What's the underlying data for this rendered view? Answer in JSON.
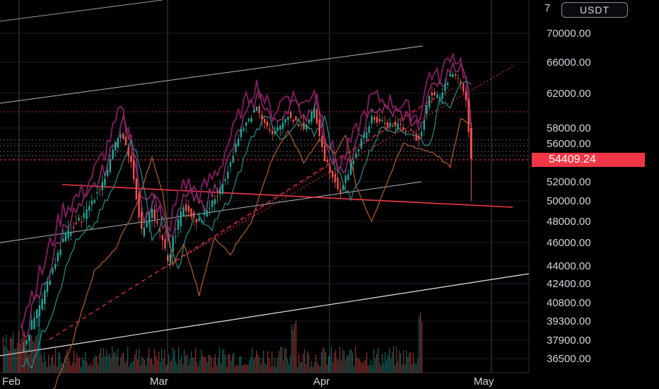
{
  "chart_data": {
    "type": "candlestick",
    "quote_currency": "USDT",
    "last_price": "54409.24",
    "y_ticks": [
      70000,
      66000,
      62000,
      58000,
      56000,
      52000,
      50000,
      48000,
      46000,
      44000,
      42400,
      40800,
      39300,
      37900,
      36500
    ],
    "y_tick_labels": [
      "70000.00",
      "66000.00",
      "62000.00",
      "58000.00",
      "56000.00",
      "52000.00",
      "50000.00",
      "48000.00",
      "46000.00",
      "44000.00",
      "42400.00",
      "40800.00",
      "39300.00",
      "37900.00",
      "36500.00"
    ],
    "x_tick_labels": [
      "Feb",
      "Mar",
      "Apr",
      "May"
    ],
    "close_path": [
      {
        "day": 0,
        "price": 37000
      },
      {
        "day": 4,
        "price": 41000
      },
      {
        "day": 8,
        "price": 46500
      },
      {
        "day": 12,
        "price": 48500
      },
      {
        "day": 16,
        "price": 52500
      },
      {
        "day": 19,
        "price": 57500
      },
      {
        "day": 21,
        "price": 54000
      },
      {
        "day": 23,
        "price": 47000
      },
      {
        "day": 25,
        "price": 49000
      },
      {
        "day": 28,
        "price": 44500
      },
      {
        "day": 31,
        "price": 49500
      },
      {
        "day": 34,
        "price": 48000
      },
      {
        "day": 38,
        "price": 51000
      },
      {
        "day": 42,
        "price": 57500
      },
      {
        "day": 45,
        "price": 60500
      },
      {
        "day": 48,
        "price": 57000
      },
      {
        "day": 51,
        "price": 59500
      },
      {
        "day": 54,
        "price": 58000
      },
      {
        "day": 56,
        "price": 60000
      },
      {
        "day": 58,
        "price": 54500
      },
      {
        "day": 61,
        "price": 51000
      },
      {
        "day": 64,
        "price": 55000
      },
      {
        "day": 67,
        "price": 59000
      },
      {
        "day": 70,
        "price": 58500
      },
      {
        "day": 73,
        "price": 58000
      },
      {
        "day": 76,
        "price": 56500
      },
      {
        "day": 78,
        "price": 62000
      },
      {
        "day": 80,
        "price": 61500
      },
      {
        "day": 82,
        "price": 64500
      },
      {
        "day": 84,
        "price": 63500
      },
      {
        "day": 85,
        "price": 61000
      },
      {
        "day": 86,
        "price": 54409
      }
    ],
    "horizontal_level": 50000,
    "legend": "none",
    "grid": true
  }
}
